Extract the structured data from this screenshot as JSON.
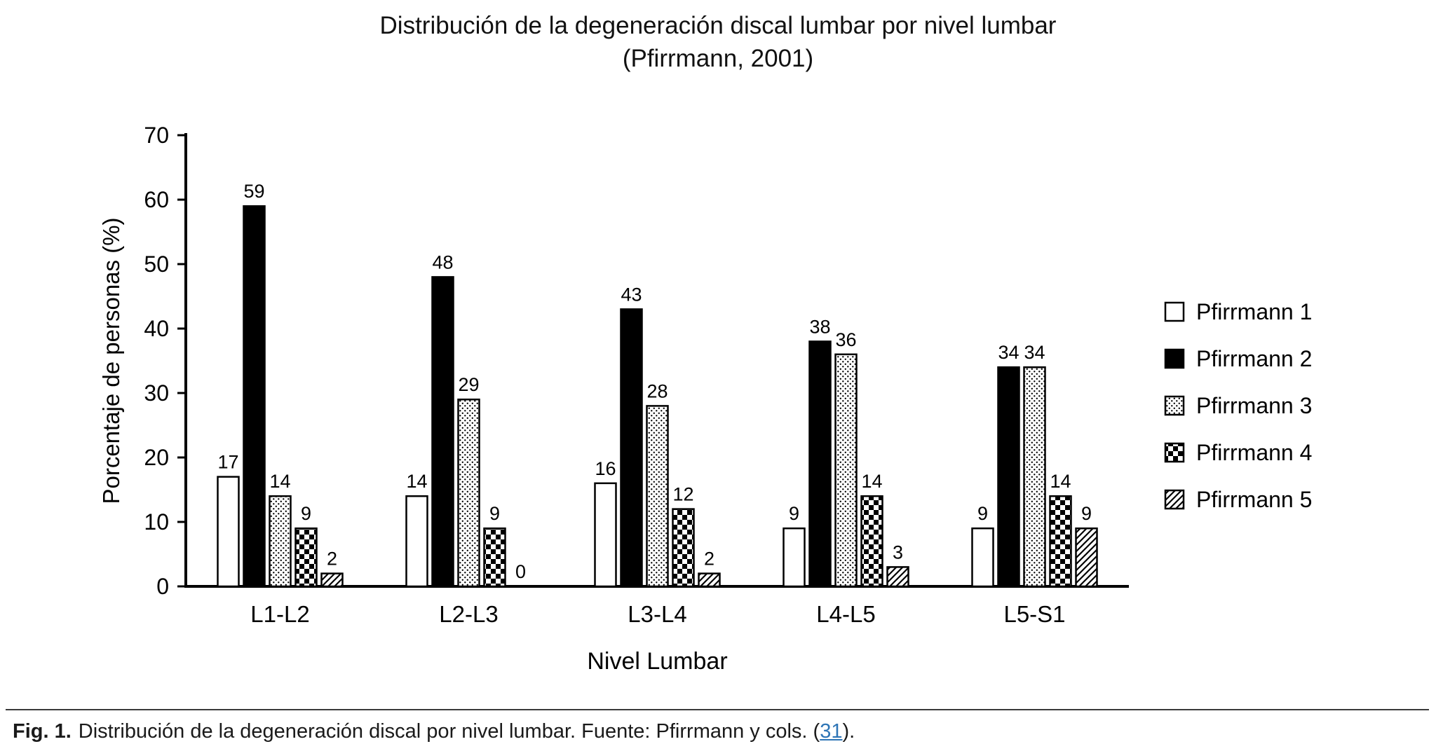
{
  "chart_data": {
    "type": "bar",
    "title": "Distribución de la degeneración discal lumbar por nivel lumbar",
    "subtitle": "(Pfirrmann, 2001)",
    "xlabel": "Nivel Lumbar",
    "ylabel": "Porcentaje de personas (%)",
    "ylim": [
      0,
      70
    ],
    "ytick_step": 10,
    "grid": false,
    "legend_position": "right",
    "categories": [
      "L1-L2",
      "L2-L3",
      "L3-L4",
      "L4-L5",
      "L5-S1"
    ],
    "series": [
      {
        "name": "Pfirrmann 1",
        "fill": "open",
        "values": [
          17,
          14,
          16,
          9,
          9
        ]
      },
      {
        "name": "Pfirrmann 2",
        "fill": "solid",
        "values": [
          59,
          48,
          43,
          38,
          34
        ]
      },
      {
        "name": "Pfirrmann 3",
        "fill": "dots",
        "values": [
          14,
          29,
          28,
          36,
          34
        ]
      },
      {
        "name": "Pfirrmann 4",
        "fill": "checker",
        "values": [
          9,
          9,
          12,
          14,
          14
        ]
      },
      {
        "name": "Pfirrmann 5",
        "fill": "diagonal",
        "values": [
          2,
          0,
          2,
          3,
          9
        ]
      }
    ]
  },
  "caption": {
    "label": "Fig. 1.",
    "text": "Distribución de la degeneración discal por nivel lumbar. Fuente: Pfirrmann y cols. (",
    "link": "31",
    "suffix": ")."
  },
  "colors": {
    "bar_black": "#000000",
    "axis": "#000000",
    "link": "#2e75b6"
  }
}
